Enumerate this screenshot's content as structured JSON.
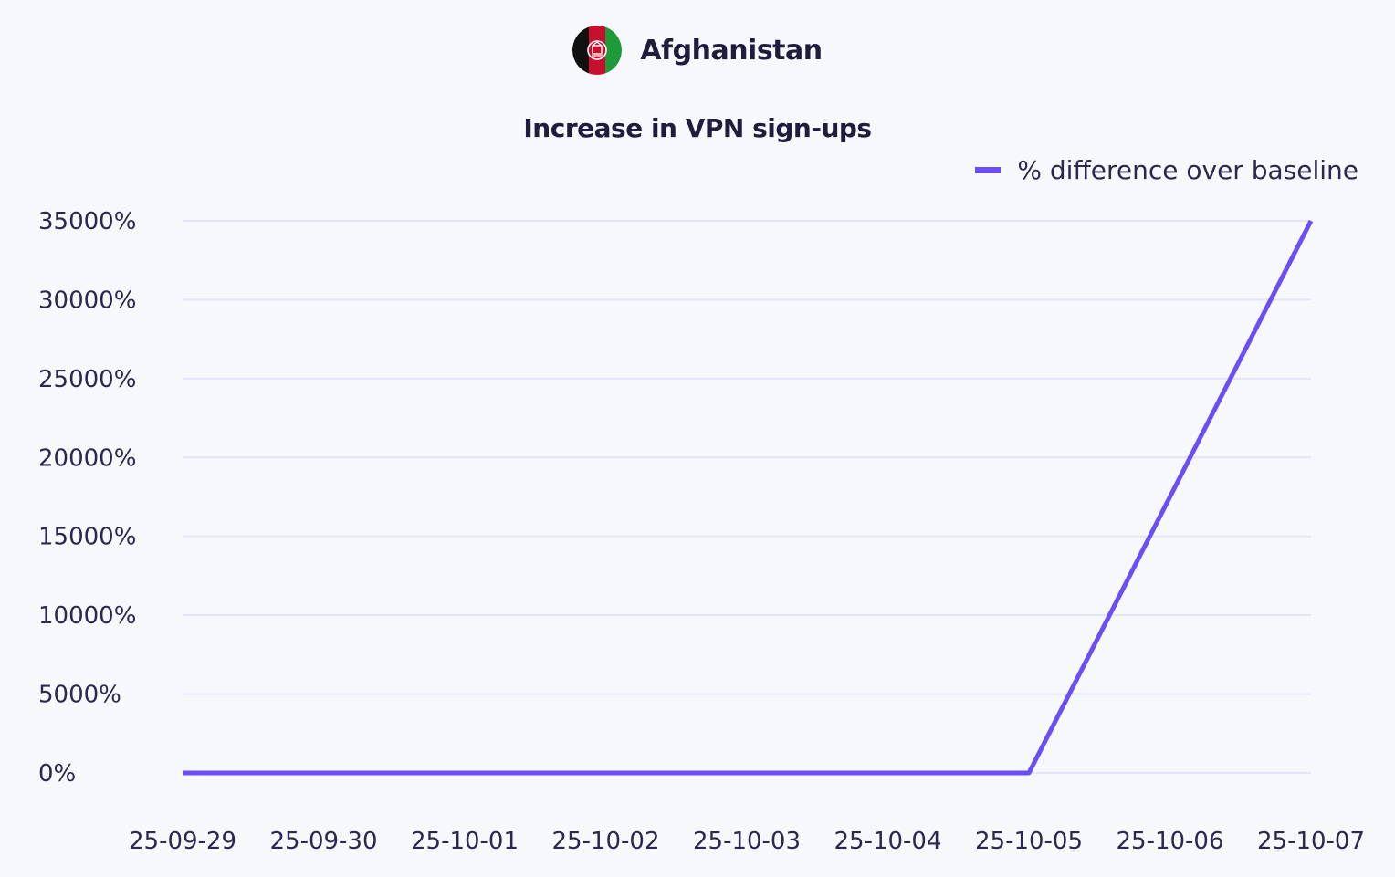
{
  "header": {
    "country": "Afghanistan"
  },
  "chart_data": {
    "type": "line",
    "title": "Increase in VPN sign-ups",
    "xlabel": "",
    "ylabel": "",
    "x": [
      "25-09-29",
      "25-09-30",
      "25-10-01",
      "25-10-02",
      "25-10-03",
      "25-10-04",
      "25-10-05",
      "25-10-06",
      "25-10-07"
    ],
    "series": [
      {
        "name": "% difference over baseline",
        "values": [
          0,
          0,
          0,
          0,
          0,
          0,
          0,
          17500,
          35000
        ]
      }
    ],
    "y_ticks": [
      "0%",
      "5000%",
      "10000%",
      "15000%",
      "20000%",
      "25000%",
      "30000%",
      "35000%"
    ],
    "ylim": [
      0,
      35000
    ],
    "grid": true,
    "legend_position": "top-right",
    "colors": {
      "line": "#6c4ef5",
      "grid": "#e3e5f6",
      "text": "#2a2850"
    }
  }
}
